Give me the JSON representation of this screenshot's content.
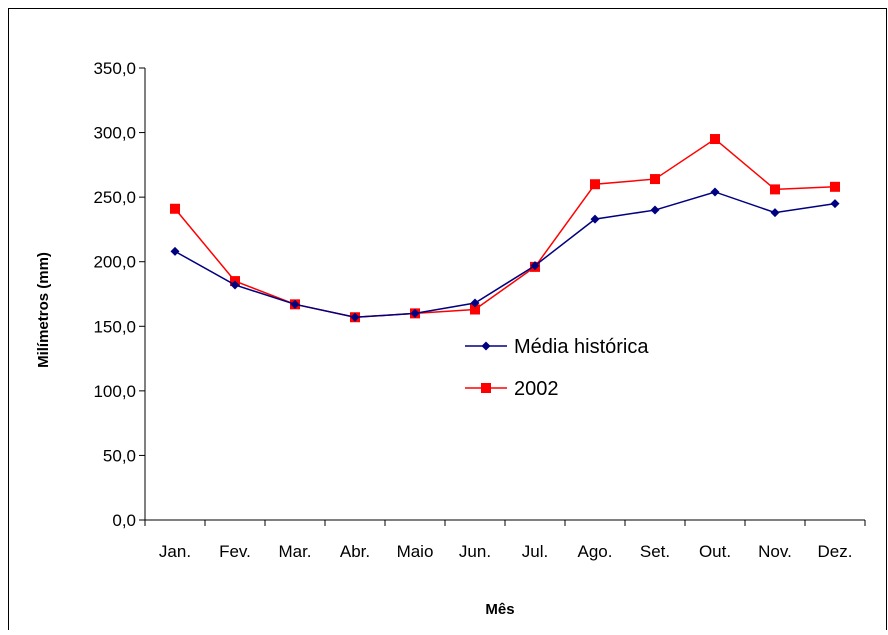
{
  "chart_data": {
    "type": "line",
    "title": "",
    "xlabel": "Mês",
    "ylabel": "Milímetros (mm)",
    "categories": [
      "Jan.",
      "Fev.",
      "Mar.",
      "Abr.",
      "Maio",
      "Jun.",
      "Jul.",
      "Ago.",
      "Set.",
      "Out.",
      "Nov.",
      "Dez."
    ],
    "ylim": [
      0,
      350
    ],
    "yticks": [
      "0,0",
      "50,0",
      "100,0",
      "150,0",
      "200,0",
      "250,0",
      "300,0",
      "350,0"
    ],
    "grid": false,
    "legend_position": "center-right, inside plot area",
    "series": [
      {
        "name": "Média histórica",
        "color": "#000080",
        "marker": "diamond",
        "values": [
          208,
          182,
          167,
          157,
          160,
          168,
          197,
          233,
          240,
          254,
          238,
          245
        ]
      },
      {
        "name": "2002",
        "color": "#FF0000",
        "marker": "square",
        "values": [
          241,
          185,
          167,
          157,
          160,
          163,
          196,
          260,
          264,
          295,
          256,
          258
        ]
      }
    ]
  }
}
